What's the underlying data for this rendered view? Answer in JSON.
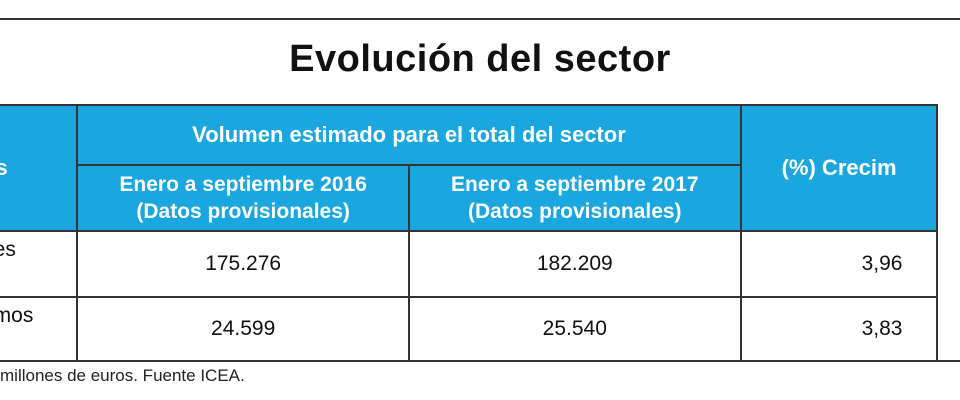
{
  "title": "Evolución del sector",
  "headers": {
    "left": "os",
    "volume_group": "Volumen estimado para el total del sector",
    "col_2016_line1": "Enero a septiembre 2016",
    "col_2016_line2": "(Datos provisionales)",
    "col_2017_line1": "Enero a septiembre 2017",
    "col_2017_line2": "(Datos provisionales)",
    "growth": "(%) Crecim"
  },
  "rows": [
    {
      "label": "nes",
      "v2016": "175.276",
      "v2017": "182.209",
      "growth": "3,96"
    },
    {
      "label": "amos",
      "v2016": "24.599",
      "v2017": "25.540",
      "growth": "3,83"
    }
  ],
  "footnote": "millones de euros. Fuente ICEA.",
  "colors": {
    "header_bg": "#1aa6df",
    "border": "#333333"
  }
}
